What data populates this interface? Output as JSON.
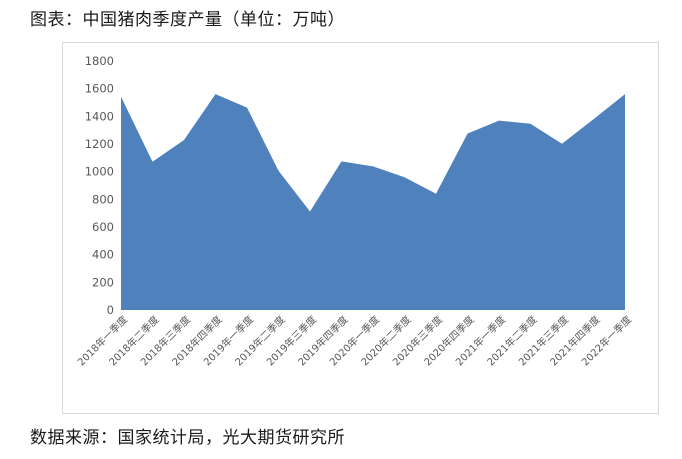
{
  "title": "图表：中国猪肉季度产量（单位：万吨）",
  "source": "数据来源：国家统计局，光大期货研究所",
  "chart_data": {
    "type": "area",
    "title": "中国猪肉季度产量",
    "unit": "万吨",
    "categories": [
      "2018年一季度",
      "2018年二季度",
      "2018年三季度",
      "2018年四季度",
      "2019年一季度",
      "2019年二季度",
      "2019年三季度",
      "2019年四季度",
      "2020年一季度",
      "2020年二季度",
      "2020年三季度",
      "2020年四季度",
      "2021年一季度",
      "2021年二季度",
      "2021年三季度",
      "2021年四季度",
      "2022年一季度"
    ],
    "values": [
      1543,
      1071,
      1229,
      1561,
      1463,
      1007,
      712,
      1074,
      1038,
      960,
      840,
      1275,
      1369,
      1346,
      1202,
      1379,
      1561
    ],
    "ylim": [
      0,
      1800
    ],
    "y_ticks": [
      0,
      200,
      400,
      600,
      800,
      1000,
      1200,
      1400,
      1600,
      1800
    ],
    "grid": false,
    "legend": false,
    "colors": {
      "area_fill": "#4f81bd",
      "axis_label": "#595959",
      "frame_border": "#d9d9d9"
    }
  }
}
